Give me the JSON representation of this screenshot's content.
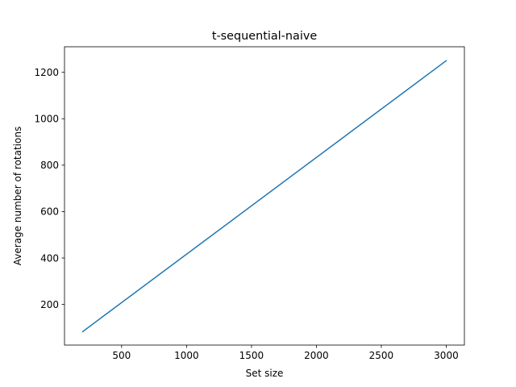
{
  "chart_data": {
    "type": "line",
    "title": "t-sequential-naive",
    "xlabel": "Set size",
    "ylabel": "Average number of rotations",
    "xlim": [
      60,
      3140
    ],
    "ylim": [
      25,
      1310
    ],
    "xticks": [
      500,
      1000,
      1500,
      2000,
      2500,
      3000
    ],
    "yticks": [
      200,
      400,
      600,
      800,
      1000,
      1200
    ],
    "grid": false,
    "series": [
      {
        "color": "#1f77b4",
        "x": [
          200,
          3000
        ],
        "y": [
          83,
          1250
        ]
      }
    ]
  }
}
